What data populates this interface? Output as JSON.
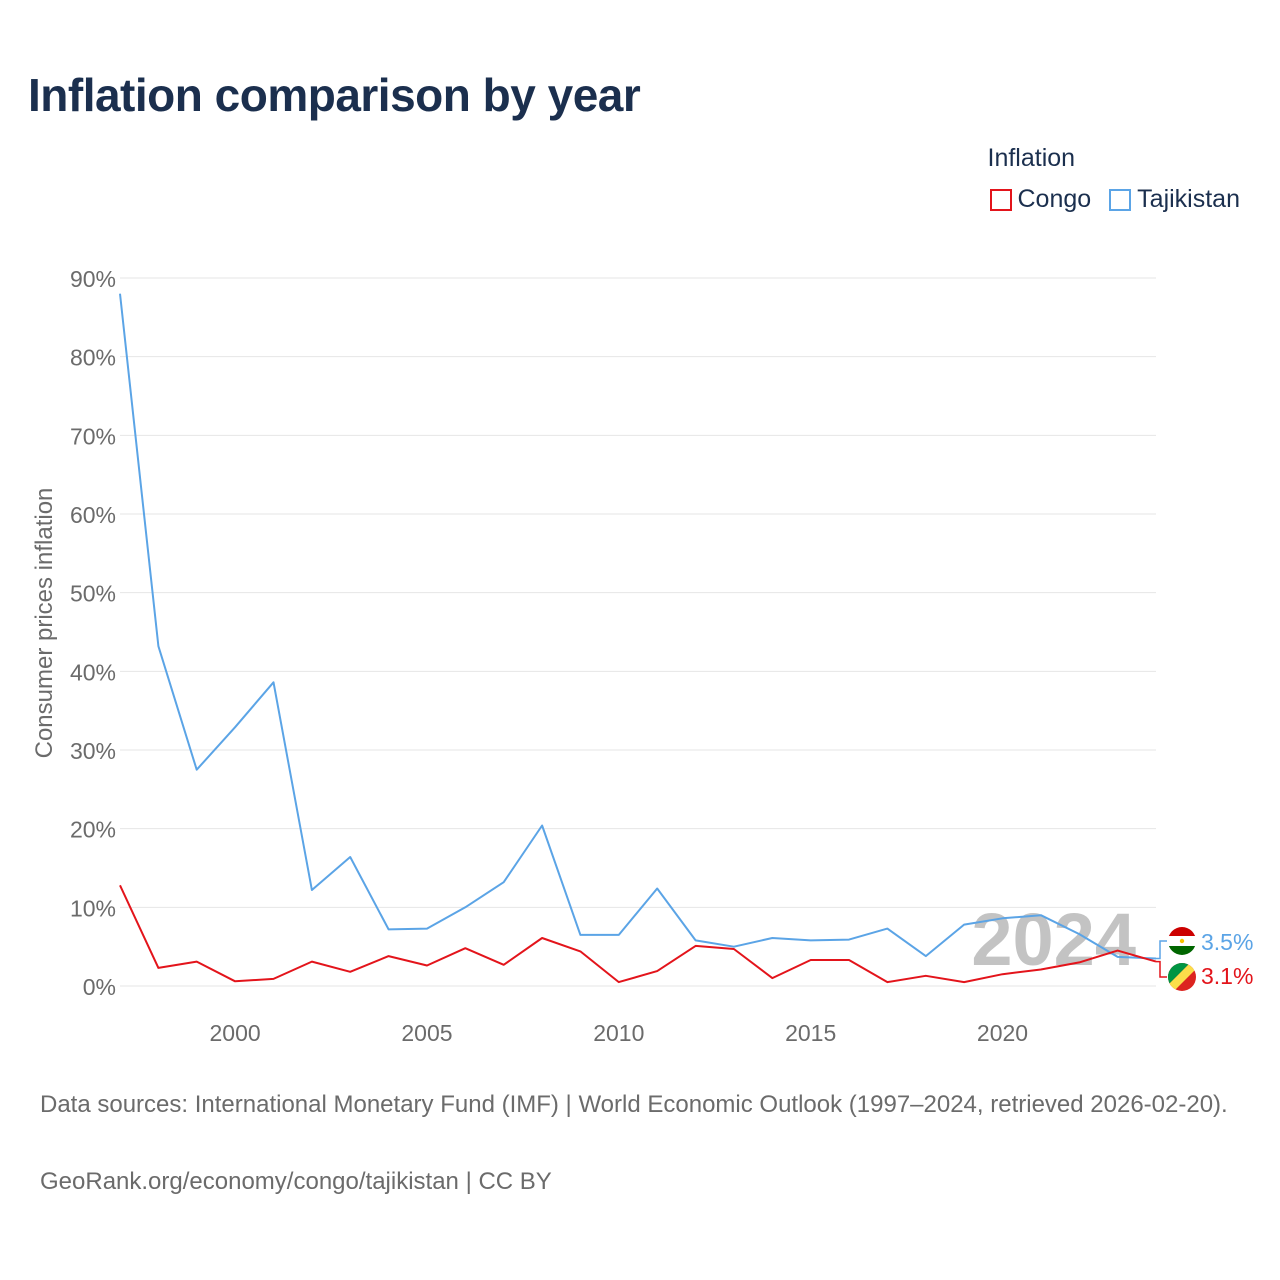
{
  "title": "Inflation comparison by year",
  "legend": {
    "title": "Inflation",
    "items": [
      {
        "label": "Congo",
        "color": "#e3141b"
      },
      {
        "label": "Tajikistan",
        "color": "#5ba4e6"
      }
    ]
  },
  "chart_data": {
    "type": "line",
    "title": "Inflation comparison by year",
    "xlabel": "",
    "ylabel": "Consumer prices inflation",
    "xlim": [
      1997,
      2024
    ],
    "ylim": [
      0,
      90
    ],
    "x_ticks": [
      2000,
      2005,
      2010,
      2015,
      2020
    ],
    "y_ticks": [
      0,
      10,
      20,
      30,
      40,
      50,
      60,
      70,
      80,
      90
    ],
    "y_tick_labels": [
      "0%",
      "10%",
      "20%",
      "30%",
      "40%",
      "50%",
      "60%",
      "70%",
      "80%",
      "90%"
    ],
    "grid": true,
    "watermark_year": "2024",
    "x": [
      1997,
      1998,
      1999,
      2000,
      2001,
      2002,
      2003,
      2004,
      2005,
      2006,
      2007,
      2008,
      2009,
      2010,
      2011,
      2012,
      2013,
      2014,
      2015,
      2016,
      2017,
      2018,
      2019,
      2020,
      2021,
      2022,
      2023,
      2024
    ],
    "series": [
      {
        "name": "Congo",
        "color": "#e3141b",
        "end_label": "3.1%",
        "values": [
          12.8,
          2.3,
          3.1,
          0.6,
          0.9,
          3.1,
          1.8,
          3.8,
          2.6,
          4.8,
          2.7,
          6.1,
          4.4,
          0.5,
          1.9,
          5.1,
          4.7,
          1.0,
          3.3,
          3.3,
          0.5,
          1.3,
          0.5,
          1.5,
          2.1,
          3.0,
          4.5,
          3.1
        ]
      },
      {
        "name": "Tajikistan",
        "color": "#5ba4e6",
        "end_label": "3.5%",
        "values": [
          88.0,
          43.2,
          27.5,
          32.9,
          38.6,
          12.2,
          16.4,
          7.2,
          7.3,
          10.0,
          13.2,
          20.4,
          6.5,
          6.5,
          12.4,
          5.8,
          5.0,
          6.1,
          5.8,
          5.9,
          7.3,
          3.8,
          7.8,
          8.6,
          9.0,
          6.6,
          3.7,
          3.5
        ]
      }
    ]
  },
  "footer": {
    "sources": "Data sources: International Monetary Fund (IMF) | World Economic Outlook (1997–2024, retrieved 2026-02-20).",
    "credit": "GeoRank.org/economy/congo/tajikistan | CC BY"
  }
}
